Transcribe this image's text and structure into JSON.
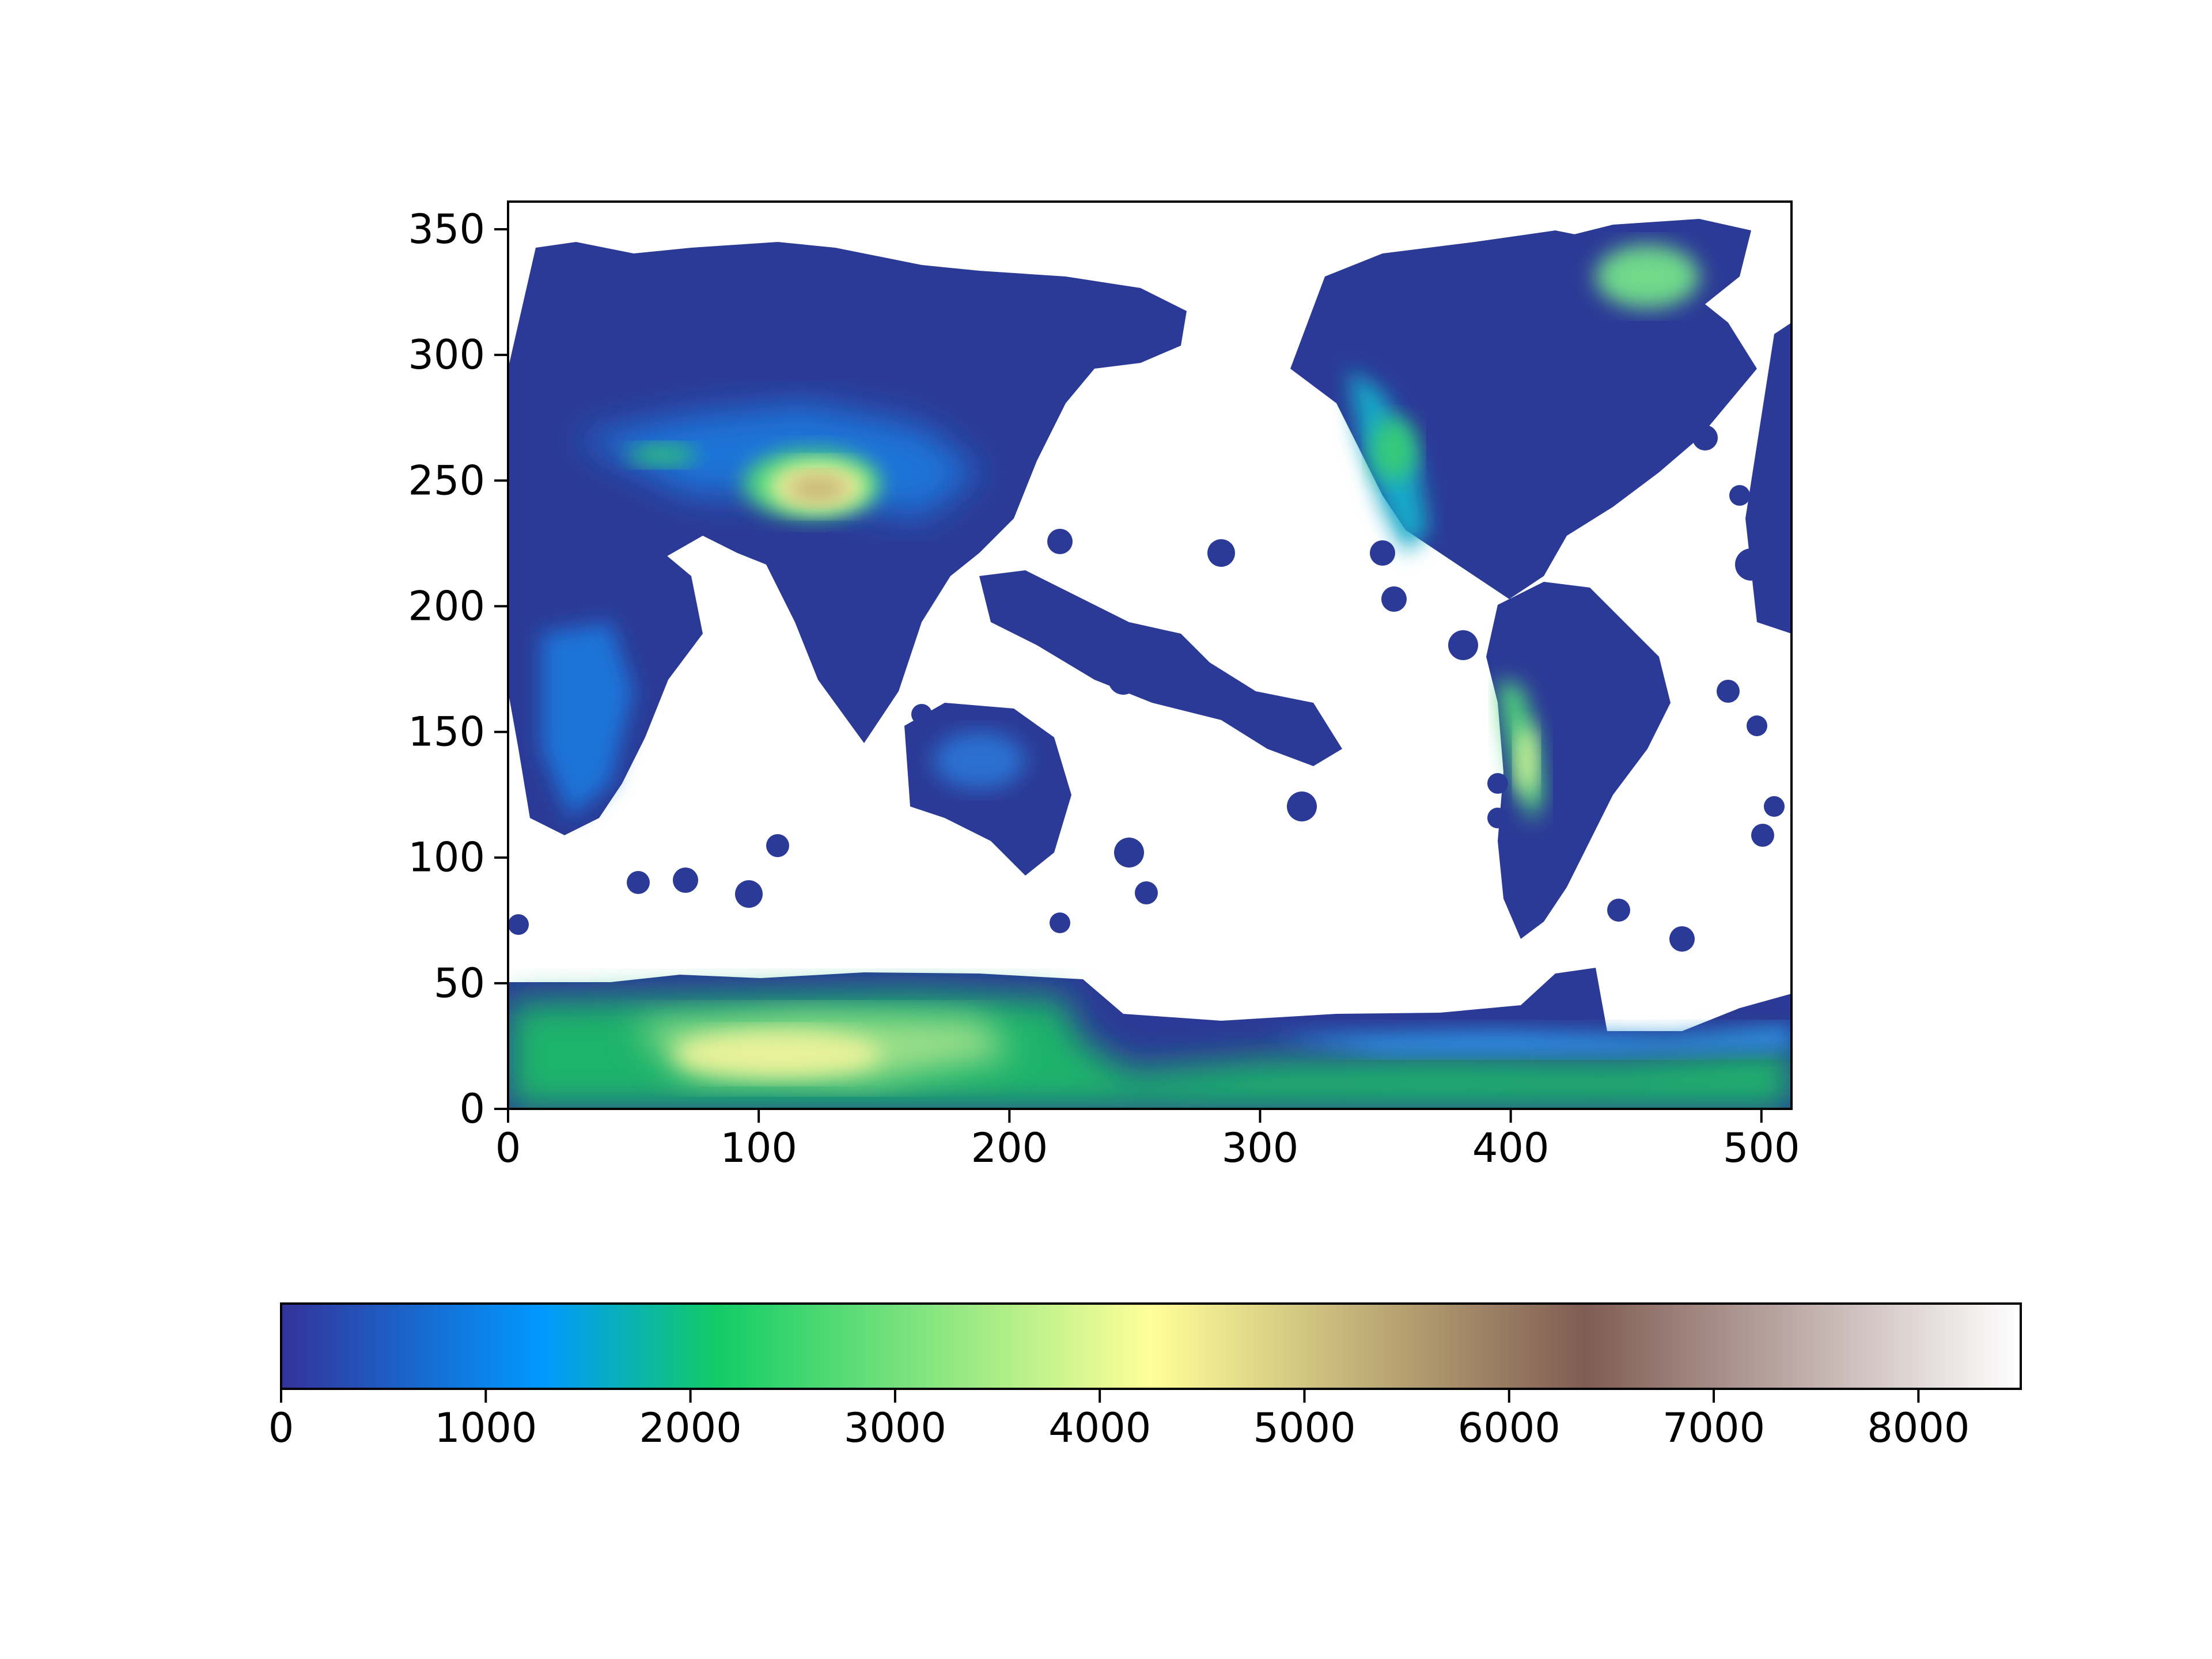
{
  "chart_data": {
    "type": "heatmap",
    "title": "",
    "xlabel": "",
    "ylabel": "",
    "xlim": [
      0,
      512
    ],
    "ylim": [
      0,
      361
    ],
    "x_ticks": [
      "0",
      "100",
      "200",
      "300",
      "400",
      "500"
    ],
    "y_ticks": [
      "0",
      "50",
      "100",
      "150",
      "200",
      "250",
      "300",
      "350"
    ],
    "x_tick_values": [
      0,
      100,
      200,
      300,
      400,
      500
    ],
    "y_tick_values": [
      0,
      50,
      100,
      150,
      200,
      250,
      300,
      350
    ],
    "colormap": "terrain",
    "colorbar": {
      "orientation": "horizontal",
      "placement": "bottom",
      "range": [
        0,
        8500
      ],
      "ticks": [
        "0",
        "1000",
        "2000",
        "3000",
        "4000",
        "5000",
        "6000",
        "7000",
        "8000"
      ],
      "tick_values": [
        0,
        1000,
        2000,
        3000,
        4000,
        5000,
        6000,
        7000,
        8000
      ],
      "colors": [
        "#333399",
        "#0099ff",
        "#11cc66",
        "#ffff99",
        "#805c54",
        "#ffffff"
      ]
    },
    "background_color": "#ffffff",
    "masked_value_color": "#ffffff",
    "features": [
      {
        "name": "antarctica",
        "x": [
          0,
          512
        ],
        "y": [
          0,
          48
        ],
        "peak_value": 4000
      },
      {
        "name": "tibetan-plateau",
        "x": [
          100,
          150
        ],
        "y": [
          230,
          265
        ],
        "peak_value": 5000
      },
      {
        "name": "andes",
        "x": [
          400,
          420
        ],
        "y": [
          120,
          190
        ],
        "peak_value": 3500
      },
      {
        "name": "greenland",
        "x": [
          430,
          475
        ],
        "y": [
          300,
          345
        ],
        "peak_value": 3000
      },
      {
        "name": "rocky-mountains",
        "x": [
          340,
          370
        ],
        "y": [
          220,
          300
        ],
        "peak_value": 2500
      },
      {
        "name": "africa",
        "x": [
          5,
          90
        ],
        "y": [
          110,
          240
        ],
        "peak_value": 1500
      },
      {
        "name": "eurasia",
        "x": [
          0,
          260
        ],
        "y": [
          200,
          350
        ],
        "peak_value": 1200
      },
      {
        "name": "australia",
        "x": [
          160,
          220
        ],
        "y": [
          95,
          160
        ],
        "peak_value": 800
      },
      {
        "name": "south-america",
        "x": [
          395,
          470
        ],
        "y": [
          65,
          200
        ],
        "peak_value": 600
      },
      {
        "name": "north-america",
        "x": [
          330,
          440
        ],
        "y": [
          200,
          340
        ],
        "peak_value": 900
      }
    ]
  }
}
